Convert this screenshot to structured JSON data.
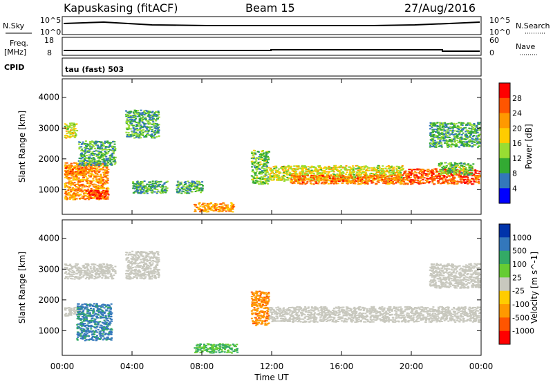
{
  "header": {
    "radar": "Kapuskasing (fitACF)",
    "beam": "Beam 15",
    "date": "27/Aug/2016"
  },
  "panels": {
    "nsky": {
      "left_label": "N.Sky",
      "left_ticks": [
        "10^5",
        "10^0"
      ],
      "right_ticks": [
        "10^5",
        "10^0"
      ],
      "right_label": "N.Search"
    },
    "freq": {
      "left_label_1": "Freq.",
      "left_label_2": "[MHz]",
      "left_ticks": [
        "18",
        "8"
      ],
      "right_ticks": [
        "60",
        "0"
      ],
      "right_label": "Nave"
    },
    "cpid": {
      "label": "CPID",
      "text": "tau (fast) 503"
    }
  },
  "chart_data": [
    {
      "type": "heatmap",
      "name": "power",
      "ylabel": "Slant Range [km]",
      "xlabel": "Time UT",
      "yticks": [
        1000,
        2000,
        3000,
        4000
      ],
      "ylim": [
        200,
        4600
      ],
      "xticks": [
        "00:00",
        "04:00",
        "08:00",
        "12:00",
        "16:00",
        "20:00",
        "00:00"
      ],
      "xlim_hours": [
        0,
        24
      ],
      "colorbar": {
        "label": "Power [dB]",
        "ticks": [
          "28",
          "24",
          "20",
          "16",
          "12",
          "8",
          "4"
        ],
        "colors": [
          "#ff0000",
          "#ff5500",
          "#ff9900",
          "#ffcc00",
          "#99dd33",
          "#33aa33",
          "#3377bb",
          "#0000ff"
        ]
      },
      "regions": [
        {
          "t": [
            0.1,
            2.6
          ],
          "r": [
            700,
            1900
          ],
          "level": 20
        },
        {
          "t": [
            1.3,
            2.6
          ],
          "r": [
            700,
            1000
          ],
          "level": 26
        },
        {
          "t": [
            0.1,
            1.5
          ],
          "r": [
            1500,
            1800
          ],
          "level": 22
        },
        {
          "t": [
            0.1,
            0.8
          ],
          "r": [
            2700,
            3200
          ],
          "level": 14
        },
        {
          "t": [
            0.9,
            3.0
          ],
          "r": [
            1800,
            2600
          ],
          "level": 8
        },
        {
          "t": [
            3.6,
            5.5
          ],
          "r": [
            2700,
            3600
          ],
          "level": 8
        },
        {
          "t": [
            4.0,
            6.0
          ],
          "r": [
            900,
            1300
          ],
          "level": 8
        },
        {
          "t": [
            6.5,
            8.0
          ],
          "r": [
            900,
            1300
          ],
          "level": 8
        },
        {
          "t": [
            7.5,
            9.8
          ],
          "r": [
            300,
            600
          ],
          "level": 20
        },
        {
          "t": [
            10.8,
            11.8
          ],
          "r": [
            1200,
            2300
          ],
          "level": 10
        },
        {
          "t": [
            11.8,
            19.5
          ],
          "r": [
            1300,
            1800
          ],
          "level": 14
        },
        {
          "t": [
            13.0,
            19.5
          ],
          "r": [
            1200,
            1500
          ],
          "level": 22
        },
        {
          "t": [
            19.5,
            23.9
          ],
          "r": [
            1200,
            1700
          ],
          "level": 24
        },
        {
          "t": [
            21.5,
            23.5
          ],
          "r": [
            1500,
            1900
          ],
          "level": 10
        },
        {
          "t": [
            21.0,
            23.9
          ],
          "r": [
            2400,
            3200
          ],
          "level": 8
        }
      ]
    },
    {
      "type": "heatmap",
      "name": "velocity",
      "ylabel": "Slant Range [km]",
      "xlabel": "Time UT",
      "yticks": [
        1000,
        2000,
        3000,
        4000
      ],
      "ylim": [
        200,
        4600
      ],
      "xticks": [
        "00:00",
        "04:00",
        "08:00",
        "12:00",
        "16:00",
        "20:00",
        "00:00"
      ],
      "xlim_hours": [
        0,
        24
      ],
      "colorbar": {
        "label": "Velocity [m s^-1]",
        "ticks": [
          "1000",
          "500",
          "100",
          "25",
          "-25",
          "-100",
          "-500",
          "-1000"
        ],
        "colors": [
          "#0033aa",
          "#3377bb",
          "#33aa66",
          "#66cc33",
          "#c8c8be",
          "#ffcc00",
          "#ff9900",
          "#ff5500",
          "#ff0000"
        ]
      },
      "regions": [
        {
          "t": [
            0.1,
            1.0
          ],
          "r": [
            1500,
            1800
          ],
          "level": 0
        },
        {
          "t": [
            0.8,
            2.8
          ],
          "r": [
            700,
            1900
          ],
          "level": 300
        },
        {
          "t": [
            0.1,
            3.0
          ],
          "r": [
            2700,
            3200
          ],
          "level": 0
        },
        {
          "t": [
            3.6,
            5.5
          ],
          "r": [
            2700,
            3600
          ],
          "level": 0
        },
        {
          "t": [
            7.5,
            10.0
          ],
          "r": [
            300,
            600
          ],
          "level": 60
        },
        {
          "t": [
            10.8,
            11.8
          ],
          "r": [
            1200,
            2300
          ],
          "level": -200
        },
        {
          "t": [
            11.8,
            23.9
          ],
          "r": [
            1300,
            1800
          ],
          "level": 0
        },
        {
          "t": [
            21.0,
            23.9
          ],
          "r": [
            2400,
            3200
          ],
          "level": 0
        }
      ]
    }
  ]
}
